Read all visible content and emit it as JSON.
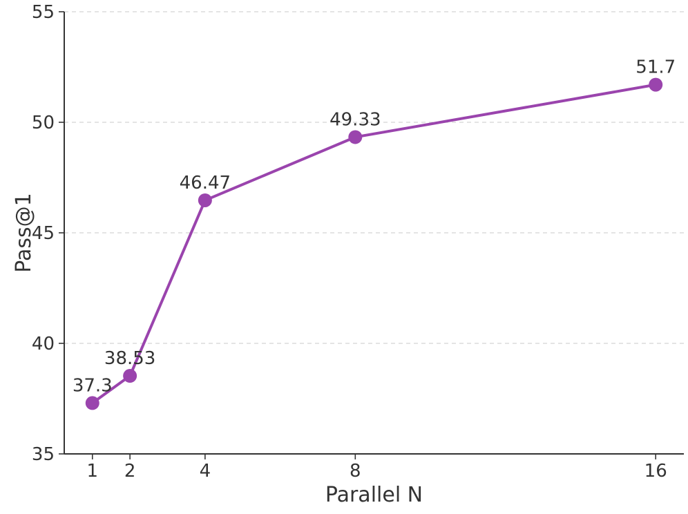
{
  "chart_data": {
    "type": "line",
    "title": "",
    "xlabel": "Parallel N",
    "ylabel": "Pass@1",
    "x": [
      1,
      2,
      4,
      8,
      16
    ],
    "values": [
      37.3,
      38.53,
      46.47,
      49.33,
      51.7
    ],
    "point_labels": [
      "37.3",
      "38.53",
      "46.47",
      "49.33",
      "51.7"
    ],
    "xticks": [
      1,
      2,
      4,
      8,
      16
    ],
    "xtick_labels": [
      "1",
      "2",
      "4",
      "8",
      "16"
    ],
    "yticks": [
      35,
      40,
      45,
      50,
      55
    ],
    "ytick_labels": [
      "35",
      "40",
      "45",
      "50",
      "55"
    ],
    "xlim": [
      0.25,
      16.75
    ],
    "ylim": [
      35,
      55
    ],
    "x_scale": "linear",
    "grid": "horizontal-dashed",
    "legend": "none",
    "colors": {
      "line": "#9a44ad",
      "marker": "#9a44ad",
      "grid": "#dcdcdc",
      "axis": "#333333",
      "text": "#333333",
      "background": "#ffffff"
    }
  }
}
